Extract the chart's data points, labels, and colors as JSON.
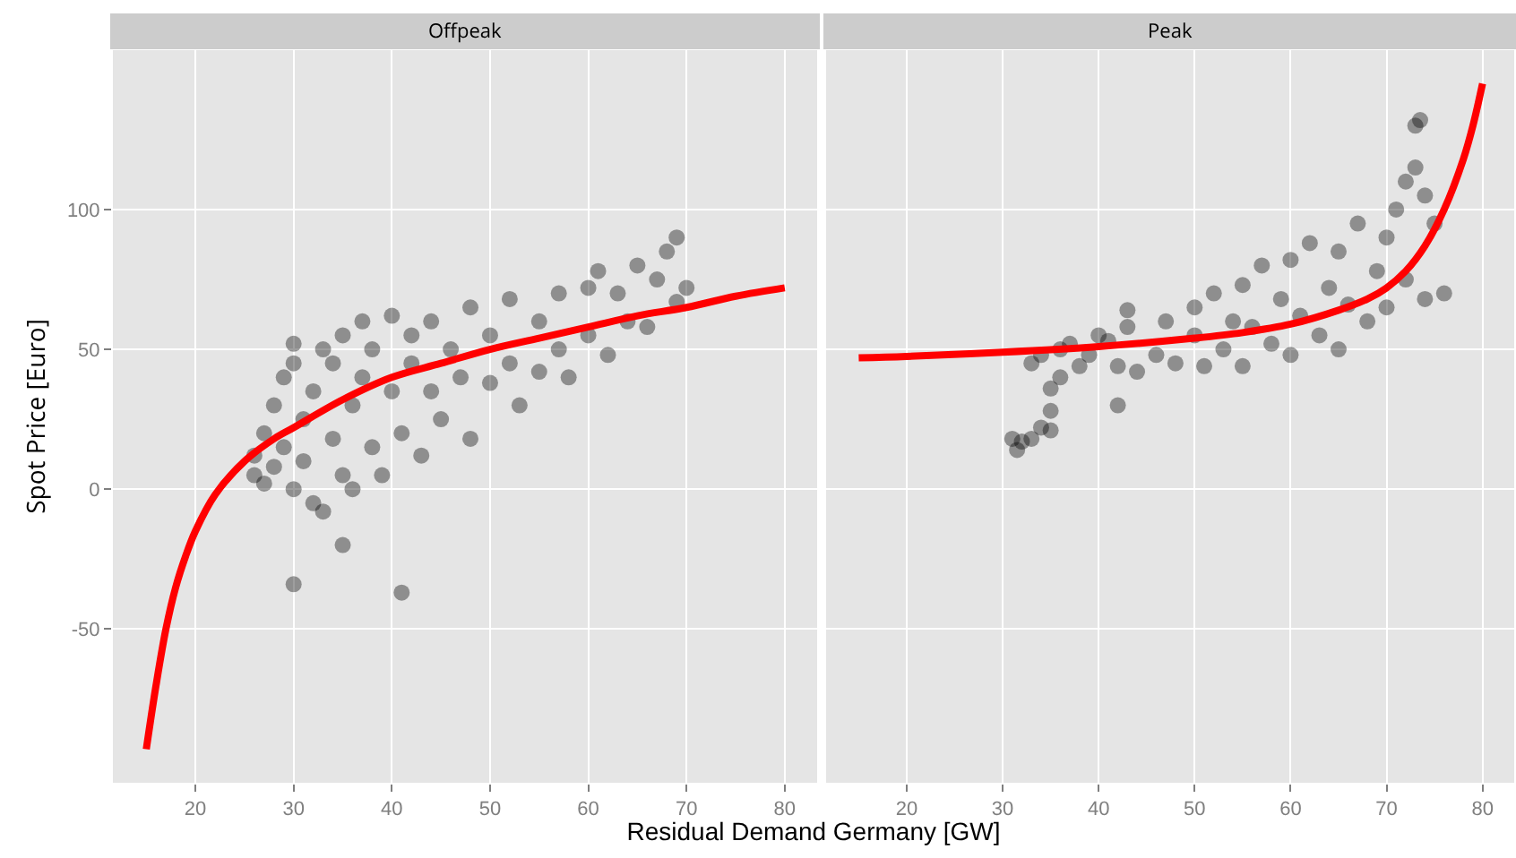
{
  "chart_data": [
    {
      "type": "scatter",
      "title": "Offpeak",
      "xlabel": "Residual Demand Germany [GW]",
      "ylabel": "Spot Price [Euro]",
      "xlim": [
        11.6,
        83.3
      ],
      "ylim": [
        -105,
        157
      ],
      "xticks": [
        20,
        30,
        40,
        50,
        60,
        70,
        80
      ],
      "yticks": [
        -50,
        0,
        50,
        100
      ],
      "grid": true,
      "series": [
        {
          "marker": "circle",
          "color": "#000000",
          "x": [
            26,
            26,
            27,
            27,
            28,
            28,
            29,
            29,
            30,
            30,
            30,
            30,
            31,
            31,
            32,
            32,
            33,
            33,
            34,
            34,
            35,
            35,
            35,
            36,
            36,
            37,
            37,
            38,
            38,
            39,
            40,
            40,
            41,
            41,
            42,
            42,
            43,
            44,
            44,
            45,
            46,
            47,
            48,
            48,
            50,
            50,
            52,
            52,
            53,
            55,
            55,
            57,
            57,
            58,
            60,
            60,
            61,
            62,
            63,
            64,
            65,
            66,
            67,
            68,
            69,
            69,
            70
          ],
          "values": [
            5,
            12,
            2,
            20,
            8,
            30,
            15,
            40,
            45,
            52,
            -34,
            0,
            25,
            10,
            -5,
            35,
            50,
            -8,
            18,
            45,
            -20,
            55,
            5,
            30,
            0,
            60,
            40,
            15,
            50,
            5,
            62,
            35,
            -37,
            20,
            55,
            45,
            12,
            60,
            35,
            25,
            50,
            40,
            65,
            18,
            55,
            38,
            68,
            45,
            30,
            60,
            42,
            70,
            50,
            40,
            72,
            55,
            78,
            48,
            70,
            60,
            80,
            58,
            75,
            85,
            90,
            67,
            72
          ]
        },
        {
          "type": "line",
          "color": "#ff0000",
          "line_style": "solid",
          "x": [
            15,
            16,
            17,
            18,
            19,
            20,
            22,
            25,
            28,
            30,
            35,
            40,
            45,
            50,
            55,
            60,
            65,
            70,
            75,
            80
          ],
          "values": [
            -93,
            -70,
            -50,
            -35,
            -24,
            -15,
            -2,
            10,
            18,
            22,
            32,
            40,
            45,
            50,
            54,
            58,
            62,
            65,
            69,
            72
          ]
        }
      ]
    },
    {
      "type": "scatter",
      "title": "Peak",
      "xlim": [
        11.6,
        83.3
      ],
      "ylim": [
        -105,
        157
      ],
      "xticks": [
        20,
        30,
        40,
        50,
        60,
        70,
        80
      ],
      "yticks": [
        -50,
        0,
        50,
        100
      ],
      "grid": true,
      "tick_labels": "x",
      "series": [
        {
          "marker": "circle",
          "color": "#000000",
          "x": [
            31,
            31.5,
            32,
            33,
            34,
            35,
            35,
            35,
            34,
            33,
            36,
            36,
            37,
            38,
            39,
            40,
            41,
            42,
            42,
            43,
            43,
            44,
            46,
            47,
            48,
            50,
            50,
            51,
            52,
            53,
            54,
            55,
            55,
            56,
            57,
            58,
            59,
            60,
            60,
            61,
            62,
            63,
            64,
            65,
            65,
            66,
            67,
            68,
            69,
            70,
            70,
            71,
            72,
            72,
            73,
            73,
            74,
            74,
            75,
            76,
            73.5
          ],
          "values": [
            18,
            14,
            17,
            18,
            22,
            28,
            21,
            36,
            48,
            45,
            50,
            40,
            52,
            44,
            48,
            55,
            53,
            44,
            30,
            64,
            58,
            42,
            48,
            60,
            45,
            65,
            55,
            44,
            70,
            50,
            60,
            73,
            44,
            58,
            80,
            52,
            68,
            82,
            48,
            62,
            88,
            55,
            72,
            85,
            50,
            66,
            95,
            60,
            78,
            90,
            65,
            100,
            110,
            75,
            130,
            115,
            105,
            68,
            95,
            70,
            132
          ]
        },
        {
          "type": "line",
          "color": "#ff0000",
          "line_style": "solid",
          "x": [
            15,
            20,
            30,
            40,
            50,
            55,
            60,
            65,
            68,
            70,
            72,
            74,
            76,
            78,
            79,
            80
          ],
          "values": [
            47,
            47.5,
            49,
            51,
            54,
            56,
            59,
            64,
            68,
            72,
            78,
            87,
            100,
            118,
            130,
            145
          ]
        }
      ]
    }
  ]
}
